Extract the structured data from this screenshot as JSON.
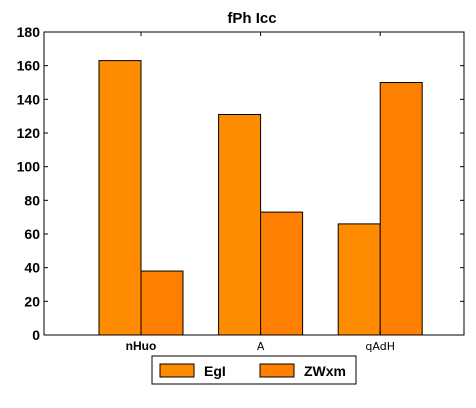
{
  "chart_data": {
    "type": "bar",
    "title": "fPh Icc",
    "xlabel": "",
    "ylabel": "",
    "categories": [
      "nHuo",
      "A",
      "qAdH"
    ],
    "series": [
      {
        "name": "EgI",
        "values": [
          163,
          131,
          66
        ],
        "color": "#ff8c00"
      },
      {
        "name": "ZWxm",
        "values": [
          38,
          73,
          150
        ],
        "color": "#ff7f00"
      }
    ],
    "ylim": [
      0,
      180
    ],
    "yticks": [
      0,
      20,
      40,
      60,
      80,
      100,
      120,
      140,
      160,
      180
    ],
    "grid": false,
    "legend_position": "bottom-center"
  }
}
